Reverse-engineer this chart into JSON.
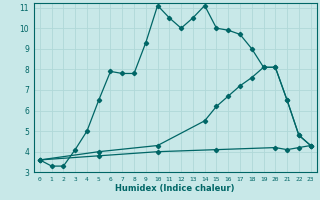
{
  "xlabel": "Humidex (Indice chaleur)",
  "background_color": "#c8e8e8",
  "grid_color": "#b0d8d8",
  "line_color": "#006666",
  "xlim": [
    -0.5,
    23.5
  ],
  "ylim": [
    3,
    11.2
  ],
  "xticks": [
    0,
    1,
    2,
    3,
    4,
    5,
    6,
    7,
    8,
    9,
    10,
    11,
    12,
    13,
    14,
    15,
    16,
    17,
    18,
    19,
    20,
    21,
    22,
    23
  ],
  "yticks": [
    3,
    4,
    5,
    6,
    7,
    8,
    9,
    10,
    11
  ],
  "line1_x": [
    0,
    1,
    2,
    3,
    4,
    5,
    6,
    7,
    8,
    9,
    10,
    11,
    12,
    13,
    14,
    15,
    16,
    17,
    18,
    19,
    20,
    21,
    22,
    23
  ],
  "line1_y": [
    3.6,
    3.3,
    3.3,
    4.1,
    5.0,
    6.5,
    7.9,
    7.8,
    7.8,
    9.3,
    11.1,
    10.5,
    10.0,
    10.5,
    11.1,
    10.0,
    9.9,
    9.7,
    9.0,
    8.1,
    8.1,
    6.5,
    4.8,
    4.3
  ],
  "line2_x": [
    0,
    5,
    10,
    14,
    15,
    16,
    17,
    18,
    19,
    20,
    21,
    22,
    23
  ],
  "line2_y": [
    3.6,
    4.0,
    4.3,
    5.5,
    6.2,
    6.7,
    7.2,
    7.6,
    8.1,
    8.1,
    6.5,
    4.8,
    4.3
  ],
  "line3_x": [
    0,
    5,
    10,
    15,
    20,
    21,
    22,
    23
  ],
  "line3_y": [
    3.6,
    3.8,
    4.0,
    4.1,
    4.2,
    4.1,
    4.2,
    4.3
  ]
}
